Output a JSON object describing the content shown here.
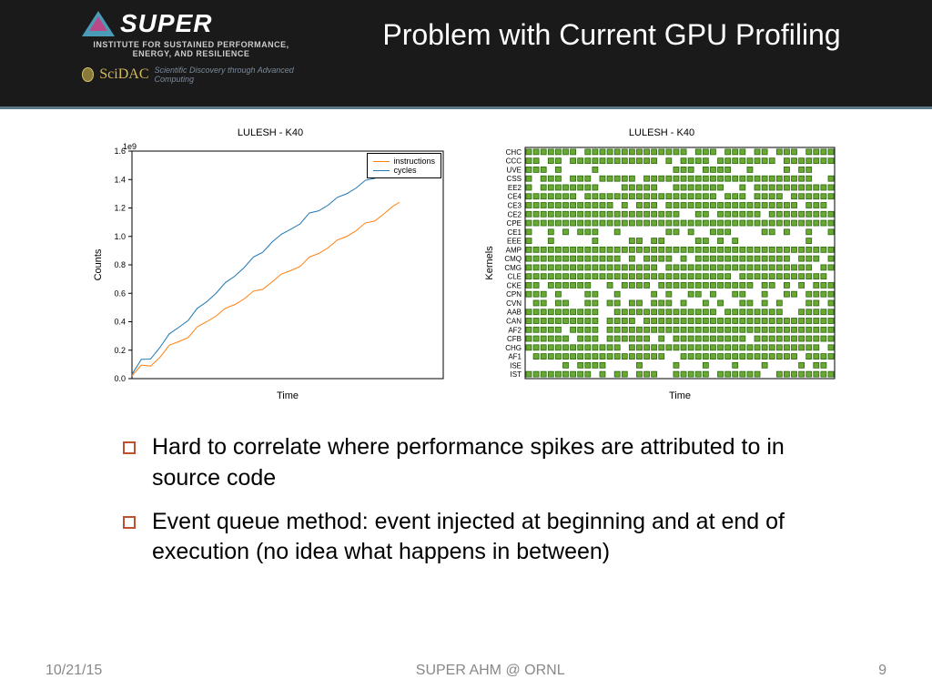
{
  "header": {
    "logo_text": "SUPER",
    "institute": "INSTITUTE FOR SUSTAINED PERFORMANCE, ENERGY, AND RESILIENCE",
    "scidac": "SciDAC",
    "scidac_sub": "Scientific Discovery through Advanced Computing",
    "title": "Problem with Current GPU Profiling"
  },
  "chart1": {
    "title": "LULESH - K40",
    "exponent": "1e9",
    "ylabel": "Counts",
    "xlabel": "Time",
    "ylim": [
      0.0,
      1.6
    ],
    "yticks": [
      "0.0",
      "0.2",
      "0.4",
      "0.6",
      "0.8",
      "1.0",
      "1.2",
      "1.4",
      "1.6"
    ],
    "legend": [
      {
        "label": "instructions",
        "color": "#ff7f0e"
      },
      {
        "label": "cycles",
        "color": "#1f77b4"
      }
    ],
    "series": {
      "instructions": {
        "color": "#ff7f0e",
        "points": [
          [
            0,
            0.02
          ],
          [
            0.03,
            0.08
          ],
          [
            0.06,
            0.1
          ],
          [
            0.09,
            0.15
          ],
          [
            0.12,
            0.22
          ],
          [
            0.15,
            0.26
          ],
          [
            0.18,
            0.3
          ],
          [
            0.21,
            0.35
          ],
          [
            0.24,
            0.4
          ],
          [
            0.27,
            0.44
          ],
          [
            0.3,
            0.48
          ],
          [
            0.33,
            0.52
          ],
          [
            0.36,
            0.56
          ],
          [
            0.39,
            0.6
          ],
          [
            0.42,
            0.64
          ],
          [
            0.45,
            0.68
          ],
          [
            0.48,
            0.72
          ],
          [
            0.51,
            0.76
          ],
          [
            0.54,
            0.8
          ],
          [
            0.57,
            0.84
          ],
          [
            0.6,
            0.88
          ],
          [
            0.63,
            0.92
          ],
          [
            0.66,
            0.96
          ],
          [
            0.69,
            1.0
          ],
          [
            0.72,
            1.04
          ],
          [
            0.75,
            1.08
          ],
          [
            0.78,
            1.12
          ],
          [
            0.81,
            1.16
          ],
          [
            0.84,
            1.2
          ],
          [
            0.86,
            1.24
          ]
        ]
      },
      "cycles": {
        "color": "#1f77b4",
        "points": [
          [
            0,
            0.03
          ],
          [
            0.03,
            0.12
          ],
          [
            0.06,
            0.15
          ],
          [
            0.09,
            0.22
          ],
          [
            0.12,
            0.3
          ],
          [
            0.15,
            0.36
          ],
          [
            0.18,
            0.42
          ],
          [
            0.21,
            0.48
          ],
          [
            0.24,
            0.54
          ],
          [
            0.27,
            0.6
          ],
          [
            0.3,
            0.66
          ],
          [
            0.33,
            0.72
          ],
          [
            0.36,
            0.78
          ],
          [
            0.39,
            0.84
          ],
          [
            0.42,
            0.9
          ],
          [
            0.45,
            0.96
          ],
          [
            0.48,
            1.0
          ],
          [
            0.51,
            1.05
          ],
          [
            0.54,
            1.1
          ],
          [
            0.57,
            1.15
          ],
          [
            0.6,
            1.18
          ],
          [
            0.63,
            1.22
          ],
          [
            0.66,
            1.26
          ],
          [
            0.69,
            1.3
          ],
          [
            0.72,
            1.34
          ],
          [
            0.75,
            1.38
          ],
          [
            0.78,
            1.42
          ],
          [
            0.81,
            1.46
          ],
          [
            0.84,
            1.48
          ],
          [
            0.88,
            1.5
          ]
        ]
      }
    }
  },
  "chart2": {
    "title": "LULESH - K40",
    "ylabel": "Kernels",
    "xlabel": "Time",
    "kernels": [
      "CHC",
      "CCC",
      "UVE",
      "CSS",
      "EE2",
      "CE4",
      "CE3",
      "CE2",
      "CPE",
      "CE1",
      "EEE",
      "AMP",
      "CMQ",
      "CMG",
      "CLE",
      "CKE",
      "CPN",
      "CVN",
      "AAB",
      "CAN",
      "AF2",
      "CFB",
      "CHG",
      "AF1",
      "ISE",
      "IST"
    ],
    "marker_fill": "#6aa831",
    "marker_stroke": "#2a6a10",
    "row_density": {
      "CHC": 0.85,
      "CCC": 0.9,
      "UVE": 0.4,
      "CSS": 0.88,
      "EE2": 0.7,
      "CE4": 0.9,
      "CE3": 0.9,
      "CE2": 0.92,
      "CPE": 0.95,
      "CE1": 0.5,
      "EEE": 0.3,
      "AMP": 0.98,
      "CMQ": 0.88,
      "CMG": 0.95,
      "CLE": 0.98,
      "CKE": 0.9,
      "CPN": 0.55,
      "CVN": 0.4,
      "AAB": 0.92,
      "CAN": 0.9,
      "AF2": 0.95,
      "CFB": 0.92,
      "CHG": 0.98,
      "AF1": 0.88,
      "ISE": 0.3,
      "IST": 0.7
    }
  },
  "bullets": [
    "Hard to correlate where performance spikes are attributed to in source code",
    "Event queue method: event injected at beginning and at end of execution (no idea what happens in between)"
  ],
  "footer": {
    "date": "10/21/15",
    "center": "SUPER AHM @ ORNL",
    "page": "9"
  },
  "colors": {
    "header_bg": "#1a1a1a",
    "bullet_box": "#c05030"
  }
}
